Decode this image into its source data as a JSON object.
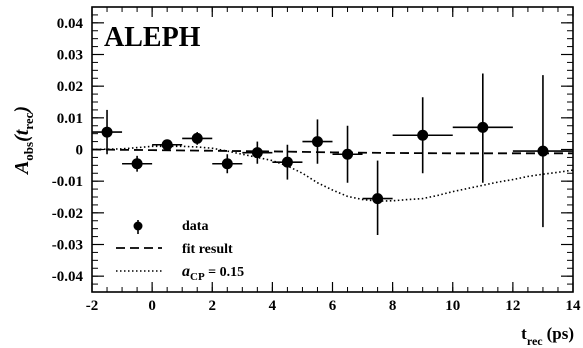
{
  "chart_data": {
    "type": "scatter",
    "watermark": "ALEPH",
    "ylabel": {
      "main": "A",
      "obs": "obs",
      "paren_open": "(t",
      "rec": "rec",
      "paren_close": ")"
    },
    "xlabel": {
      "main": "t",
      "rec": "rec",
      "unit": "(ps)"
    },
    "xlim": [
      -2,
      14
    ],
    "ylim": [
      -0.045,
      0.045
    ],
    "xticks": [
      -2,
      0,
      2,
      4,
      6,
      8,
      10,
      12,
      14
    ],
    "xtick_labels": [
      "-2",
      "0",
      "2",
      "4",
      "6",
      "8",
      "10",
      "12",
      "14"
    ],
    "yticks": [
      -0.04,
      -0.03,
      -0.02,
      -0.01,
      0,
      0.01,
      0.02,
      0.03,
      0.04
    ],
    "ytick_labels": [
      "-0.04",
      "-0.03",
      "-0.02",
      "-0.01",
      "0",
      "0.01",
      "0.02",
      "0.03",
      "0.04"
    ],
    "series": [
      {
        "name": "data",
        "style": "points",
        "points": [
          {
            "x": -1.5,
            "y": 0.0055,
            "xerr": 0.5,
            "ylo": -0.0015,
            "yhi": 0.0125
          },
          {
            "x": -0.5,
            "y": -0.0045,
            "xerr": 0.5,
            "ylo": -0.007,
            "yhi": -0.002
          },
          {
            "x": 0.5,
            "y": 0.0015,
            "xerr": 0.5,
            "ylo": 0.0005,
            "yhi": 0.0025
          },
          {
            "x": 1.5,
            "y": 0.0035,
            "xerr": 0.5,
            "ylo": 0.0015,
            "yhi": 0.0055
          },
          {
            "x": 2.5,
            "y": -0.0045,
            "xerr": 0.5,
            "ylo": -0.0075,
            "yhi": -0.0015
          },
          {
            "x": 3.5,
            "y": -0.001,
            "xerr": 0.5,
            "ylo": -0.0045,
            "yhi": 0.0025
          },
          {
            "x": 4.5,
            "y": -0.004,
            "xerr": 0.5,
            "ylo": -0.0095,
            "yhi": 0.0015
          },
          {
            "x": 5.5,
            "y": 0.0025,
            "xerr": 0.5,
            "ylo": -0.0045,
            "yhi": 0.0095
          },
          {
            "x": 6.5,
            "y": -0.0015,
            "xerr": 0.5,
            "ylo": -0.0105,
            "yhi": 0.0075
          },
          {
            "x": 7.5,
            "y": -0.0155,
            "xerr": 0.5,
            "ylo": -0.027,
            "yhi": -0.0035
          },
          {
            "x": 9.0,
            "y": 0.0045,
            "xerr": 1.0,
            "ylo": -0.0075,
            "yhi": 0.0165
          },
          {
            "x": 11.0,
            "y": 0.007,
            "xerr": 1.0,
            "ylo": -0.0105,
            "yhi": 0.024
          },
          {
            "x": 13.0,
            "y": -0.0005,
            "xerr": 1.0,
            "ylo": -0.0245,
            "yhi": 0.0235
          }
        ]
      },
      {
        "name": "fit result",
        "style": "dashed",
        "x": [
          -2,
          0,
          2,
          4,
          6,
          8,
          10,
          12,
          14
        ],
        "y": [
          0.0,
          -0.0002,
          -0.0004,
          -0.0006,
          -0.0009,
          -0.0011,
          -0.0012,
          -0.0012,
          -0.0012
        ]
      },
      {
        "name": "a_CP = 0.15",
        "style": "dotted",
        "x": [
          -2,
          -1,
          0,
          1,
          1.5,
          2,
          2.5,
          3,
          3.5,
          4,
          4.5,
          5,
          5.5,
          6,
          6.5,
          7,
          7.5,
          8,
          8.5,
          9,
          9.5,
          10,
          10.5,
          11,
          11.5,
          12,
          12.5,
          13,
          13.5,
          14
        ],
        "y": [
          0.0,
          0.0002,
          0.001,
          0.001,
          0.0008,
          0.0004,
          -0.0005,
          -0.0015,
          -0.0025,
          -0.0035,
          -0.0052,
          -0.0075,
          -0.0105,
          -0.0128,
          -0.0148,
          -0.0158,
          -0.0163,
          -0.0162,
          -0.0158,
          -0.0155,
          -0.0145,
          -0.0133,
          -0.0123,
          -0.0113,
          -0.0103,
          -0.0095,
          -0.0085,
          -0.0078,
          -0.0072,
          -0.0065
        ]
      }
    ],
    "legend": {
      "placement": "bottom-left",
      "items": [
        {
          "label": "data",
          "style": "points"
        },
        {
          "label": "fit result",
          "style": "dashed"
        },
        {
          "label_italic": "a",
          "label_sub": "CP",
          "label_rest": " = 0.15",
          "style": "dotted"
        }
      ]
    },
    "grid": false
  }
}
